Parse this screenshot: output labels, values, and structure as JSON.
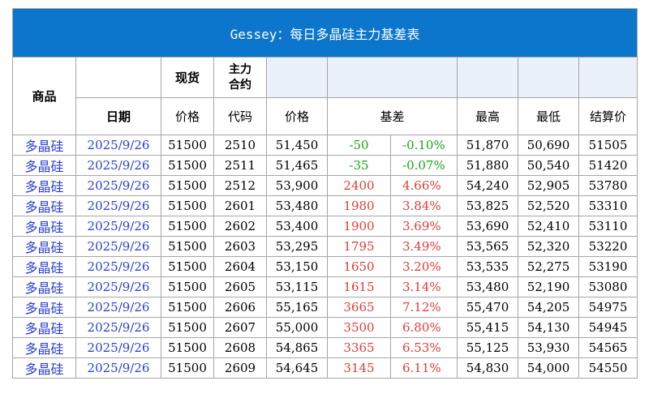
{
  "title": "Gessey：每日多晶硅主力基差表",
  "headers": {
    "product": "商品",
    "spot": "现货",
    "contract": "主力\n合约",
    "date": "日期",
    "spot_price": "价格",
    "code": "代码",
    "price": "价格",
    "basis": "基差",
    "high": "最高",
    "low": "最低",
    "settle": "结算价"
  },
  "rows": [
    {
      "product": "多晶硅",
      "date": "2025/9/26",
      "spot": "51500",
      "code": "2510",
      "price": "51,450",
      "basis": "-50",
      "pct": "-0.10%",
      "high": "51,870",
      "low": "50,690",
      "settle": "51505",
      "sign": "neg"
    },
    {
      "product": "多晶硅",
      "date": "2025/9/26",
      "spot": "51500",
      "code": "2511",
      "price": "51,465",
      "basis": "-35",
      "pct": "-0.07%",
      "high": "51,880",
      "low": "50,540",
      "settle": "51420",
      "sign": "neg"
    },
    {
      "product": "多晶硅",
      "date": "2025/9/26",
      "spot": "51500",
      "code": "2512",
      "price": "53,900",
      "basis": "2400",
      "pct": "4.66%",
      "high": "54,240",
      "low": "52,905",
      "settle": "53780",
      "sign": "pos"
    },
    {
      "product": "多晶硅",
      "date": "2025/9/26",
      "spot": "51500",
      "code": "2601",
      "price": "53,480",
      "basis": "1980",
      "pct": "3.84%",
      "high": "53,825",
      "low": "52,520",
      "settle": "53310",
      "sign": "pos"
    },
    {
      "product": "多晶硅",
      "date": "2025/9/26",
      "spot": "51500",
      "code": "2602",
      "price": "53,400",
      "basis": "1900",
      "pct": "3.69%",
      "high": "53,690",
      "low": "52,410",
      "settle": "53110",
      "sign": "pos"
    },
    {
      "product": "多晶硅",
      "date": "2025/9/26",
      "spot": "51500",
      "code": "2603",
      "price": "53,295",
      "basis": "1795",
      "pct": "3.49%",
      "high": "53,565",
      "low": "52,320",
      "settle": "53220",
      "sign": "pos"
    },
    {
      "product": "多晶硅",
      "date": "2025/9/26",
      "spot": "51500",
      "code": "2604",
      "price": "53,150",
      "basis": "1650",
      "pct": "3.20%",
      "high": "53,535",
      "low": "52,275",
      "settle": "53190",
      "sign": "pos"
    },
    {
      "product": "多晶硅",
      "date": "2025/9/26",
      "spot": "51500",
      "code": "2605",
      "price": "53,115",
      "basis": "1615",
      "pct": "3.14%",
      "high": "53,480",
      "low": "52,190",
      "settle": "53080",
      "sign": "pos"
    },
    {
      "product": "多晶硅",
      "date": "2025/9/26",
      "spot": "51500",
      "code": "2606",
      "price": "55,165",
      "basis": "3665",
      "pct": "7.12%",
      "high": "55,470",
      "low": "54,205",
      "settle": "54975",
      "sign": "pos"
    },
    {
      "product": "多晶硅",
      "date": "2025/9/26",
      "spot": "51500",
      "code": "2607",
      "price": "55,000",
      "basis": "3500",
      "pct": "6.80%",
      "high": "55,415",
      "low": "54,130",
      "settle": "54945",
      "sign": "pos"
    },
    {
      "product": "多晶硅",
      "date": "2025/9/26",
      "spot": "51500",
      "code": "2608",
      "price": "54,865",
      "basis": "3365",
      "pct": "6.53%",
      "high": "55,125",
      "low": "53,930",
      "settle": "54565",
      "sign": "pos"
    },
    {
      "product": "多晶硅",
      "date": "2025/9/26",
      "spot": "51500",
      "code": "2609",
      "price": "54,645",
      "basis": "3145",
      "pct": "6.11%",
      "high": "54,830",
      "low": "54,000",
      "settle": "54550",
      "sign": "pos"
    }
  ],
  "colors": {
    "title_bg": "#0c76cc",
    "positive": "#e23b3b",
    "negative": "#1aa51a",
    "product_text": "#2a3fd1"
  }
}
